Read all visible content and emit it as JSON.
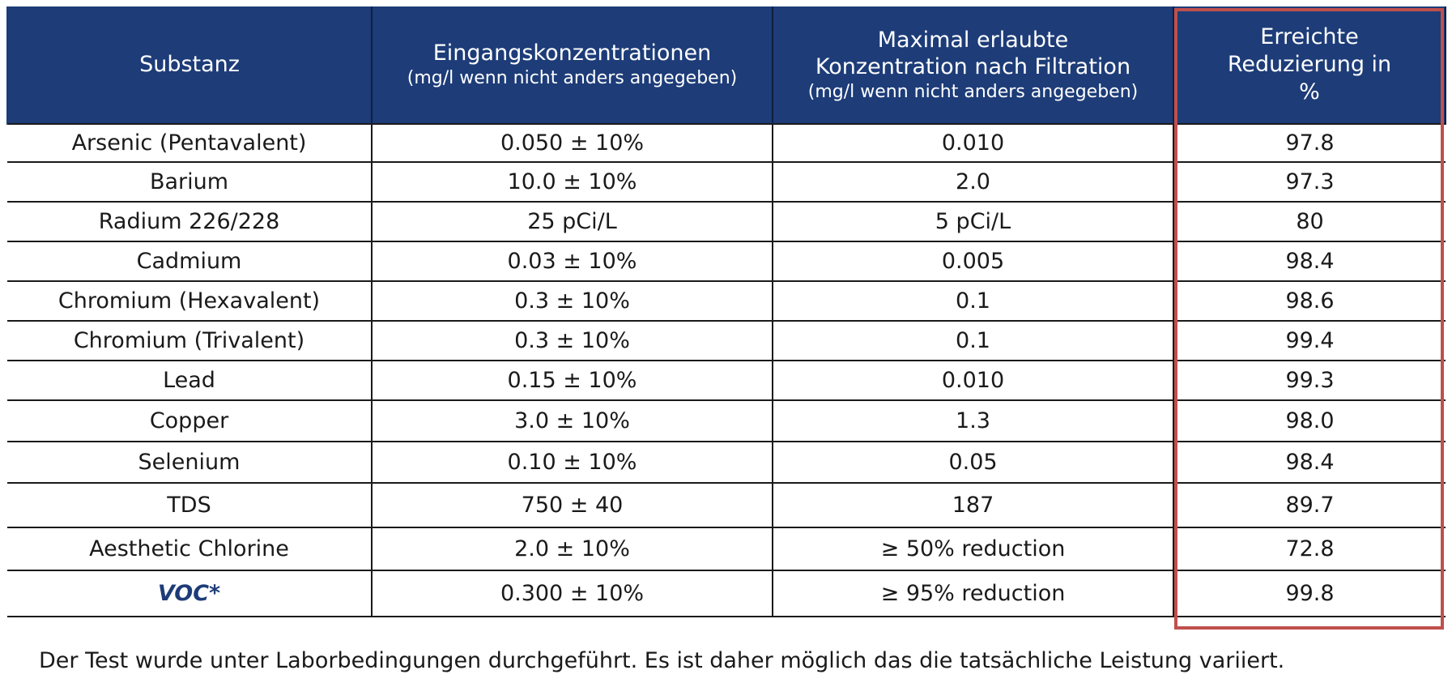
{
  "table": {
    "headers": [
      {
        "main": "Substanz",
        "sub": ""
      },
      {
        "main": "Eingangskonzentrationen",
        "sub": "(mg/l wenn nicht anders angegeben)"
      },
      {
        "main": "Maximal erlaubte Konzentration nach Filtration",
        "sub": "(mg/l wenn nicht anders angegeben)"
      },
      {
        "main": "Erreichte Reduzierung in %",
        "sub": ""
      }
    ],
    "rows": [
      [
        "Arsenic (Pentavalent)",
        "0.050 ± 10%",
        "0.010",
        "97.8"
      ],
      [
        "Barium",
        "10.0 ± 10%",
        "2.0",
        "97.3"
      ],
      [
        "Radium 226/228",
        "25 pCi/L",
        "5 pCi/L",
        "80"
      ],
      [
        "Cadmium",
        "0.03 ± 10%",
        "0.005",
        "98.4"
      ],
      [
        "Chromium (Hexavalent)",
        "0.3 ± 10%",
        "0.1",
        "98.6"
      ],
      [
        "Chromium (Trivalent)",
        "0.3 ± 10%",
        "0.1",
        "99.4"
      ],
      [
        "Lead",
        "0.15 ± 10%",
        "0.010",
        "99.3"
      ],
      [
        "Copper",
        "3.0 ± 10%",
        "1.3",
        "98.0"
      ],
      [
        "Selenium",
        "0.10 ± 10%",
        "0.05",
        "98.4"
      ],
      [
        "TDS",
        "750 ± 40",
        "187",
        "89.7"
      ],
      [
        "Aesthetic Chlorine",
        "2.0 ± 10%",
        "≥ 50% reduction",
        "72.8"
      ],
      [
        "VOC*",
        "0.300 ± 10%",
        "≥ 95% reduction",
        "99.8"
      ]
    ]
  },
  "footnote": "Der Test wurde unter Laborbedingungen durchgeführt. Es ist daher möglich das die tatsächliche Leistung variiert.",
  "colors": {
    "header_bg": "#1d3c78",
    "header_text": "#ffffff",
    "voc_text": "#1d3c78",
    "highlight_border": "#c0504d"
  }
}
